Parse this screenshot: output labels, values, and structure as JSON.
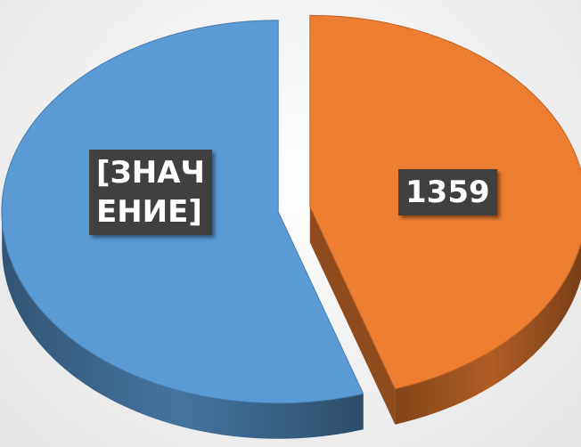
{
  "chart_data": {
    "type": "pie3d",
    "values": [
      1660,
      1359
    ],
    "value_labels": [
      "[ЗНАЧЕНИЕ]",
      "1359"
    ],
    "colors": [
      "#5b9bd5",
      "#ed7d31"
    ]
  }
}
